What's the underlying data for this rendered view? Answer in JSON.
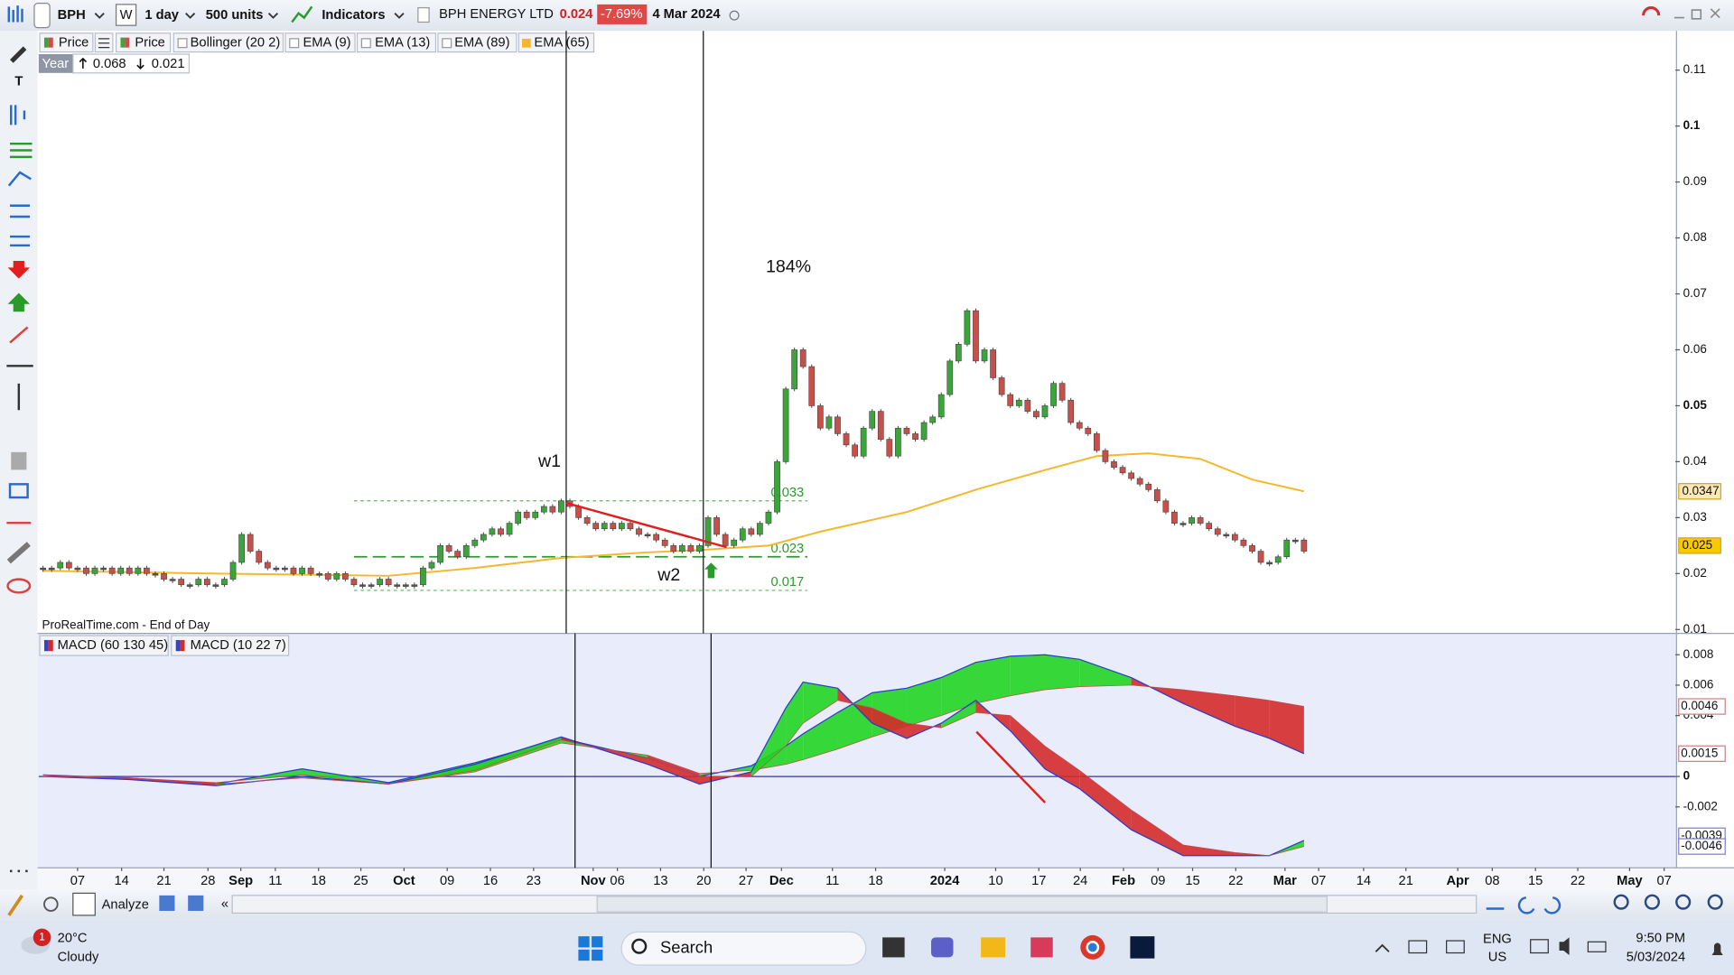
{
  "toolbar": {
    "symbol": "BPH",
    "w": "W",
    "period": "1 day",
    "units": "500 units",
    "indicators": "Indicators",
    "instrument": "BPH ENERGY LTD",
    "price": "0.024",
    "change": "-7.69%",
    "date": "4 Mar 2024"
  },
  "price_legend": {
    "items": [
      "Price",
      "Price",
      "Bollinger (20 2)",
      "EMA (9)",
      "EMA (13)",
      "EMA (89)",
      "EMA (65)"
    ],
    "period": "Year",
    "high": "0.068",
    "low": "0.021"
  },
  "source": "ProRealTime.com - End of Day",
  "chart_data": [
    {
      "type": "candlestick",
      "values": [
        0.021,
        0.021,
        0.022,
        0.021,
        0.021,
        0.02,
        0.021,
        0.021,
        0.02,
        0.021,
        0.02,
        0.021,
        0.02,
        0.02,
        0.019,
        0.019,
        0.018,
        0.018,
        0.019,
        0.018,
        0.018,
        0.019,
        0.022,
        0.027,
        0.024,
        0.022,
        0.021,
        0.021,
        0.021,
        0.02,
        0.021,
        0.02,
        0.02,
        0.019,
        0.02,
        0.019,
        0.018,
        0.018,
        0.018,
        0.019,
        0.018,
        0.018,
        0.018,
        0.018,
        0.021,
        0.022,
        0.025,
        0.024,
        0.023,
        0.025,
        0.026,
        0.027,
        0.028,
        0.027,
        0.029,
        0.031,
        0.03,
        0.031,
        0.032,
        0.031,
        0.033,
        0.032,
        0.03,
        0.029,
        0.028,
        0.029,
        0.028,
        0.029,
        0.028,
        0.027,
        0.027,
        0.026,
        0.025,
        0.024,
        0.025,
        0.024,
        0.025,
        0.03,
        0.027,
        0.025,
        0.026,
        0.028,
        0.027,
        0.029,
        0.031,
        0.04,
        0.053,
        0.06,
        0.057,
        0.05,
        0.046,
        0.048,
        0.045,
        0.043,
        0.041,
        0.046,
        0.049,
        0.044,
        0.041,
        0.046,
        0.045,
        0.044,
        0.047,
        0.048,
        0.052,
        0.058,
        0.061,
        0.067,
        0.058,
        0.06,
        0.055,
        0.052,
        0.05,
        0.051,
        0.049,
        0.048,
        0.05,
        0.054,
        0.051,
        0.047,
        0.046,
        0.045,
        0.042,
        0.04,
        0.039,
        0.038,
        0.037,
        0.036,
        0.035,
        0.033,
        0.031,
        0.029,
        0.029,
        0.03,
        0.029,
        0.028,
        0.027,
        0.027,
        0.026,
        0.025,
        0.024,
        0.022,
        0.022,
        0.023,
        0.026,
        0.026,
        0.024
      ],
      "up_color": "#3aa63a",
      "down_color": "#c9504a",
      "ema": {
        "color": "#f5b72c",
        "x": [
          0,
          20,
          40,
          50,
          60,
          70,
          76,
          84,
          90,
          100,
          108,
          116,
          122,
          128,
          134,
          140,
          146
        ],
        "values": [
          0.0205,
          0.02,
          0.0196,
          0.021,
          0.0228,
          0.0238,
          0.0242,
          0.025,
          0.0275,
          0.031,
          0.035,
          0.0385,
          0.041,
          0.0415,
          0.0405,
          0.0368,
          0.0347
        ]
      },
      "levels": [
        0.033,
        0.023,
        0.017
      ],
      "annotations": [
        "184%",
        "w1",
        "w2"
      ],
      "xlim": [
        -0.5,
        189
      ],
      "xticks": [
        {
          "value": 4,
          "label": "07"
        },
        {
          "value": 9.1,
          "label": "14"
        },
        {
          "value": 14,
          "label": "21"
        },
        {
          "value": 19.1,
          "label": "28"
        },
        {
          "value": 22.9,
          "label": "Sep"
        },
        {
          "value": 26.9,
          "label": "11"
        },
        {
          "value": 31.9,
          "label": "18"
        },
        {
          "value": 36.8,
          "label": "25"
        },
        {
          "value": 41.8,
          "label": "Oct"
        },
        {
          "value": 46.8,
          "label": "09"
        },
        {
          "value": 51.8,
          "label": "16"
        },
        {
          "value": 56.8,
          "label": "23"
        },
        {
          "value": 63.7,
          "label": "Nov"
        },
        {
          "value": 66.5,
          "label": "06"
        },
        {
          "value": 71.5,
          "label": "13"
        },
        {
          "value": 76.5,
          "label": "20"
        },
        {
          "value": 81.4,
          "label": "27"
        },
        {
          "value": 85.5,
          "label": "Dec"
        },
        {
          "value": 91.4,
          "label": "11"
        },
        {
          "value": 96.4,
          "label": "18"
        },
        {
          "value": 104.4,
          "label": "2024"
        },
        {
          "value": 110.3,
          "label": "10"
        },
        {
          "value": 115.3,
          "label": "17"
        },
        {
          "value": 120.1,
          "label": "24"
        },
        {
          "value": 125.1,
          "label": "Feb"
        },
        {
          "value": 129.1,
          "label": "09"
        },
        {
          "value": 133.1,
          "label": "15"
        },
        {
          "value": 138.1,
          "label": "22"
        },
        {
          "value": 143.8,
          "label": "Mar"
        },
        {
          "value": 147.7,
          "label": "07"
        },
        {
          "value": 152.9,
          "label": "14"
        },
        {
          "value": 157.8,
          "label": "21"
        },
        {
          "value": 163.8,
          "label": "Apr"
        },
        {
          "value": 167.8,
          "label": "08"
        },
        {
          "value": 172.8,
          "label": "15"
        },
        {
          "value": 177.7,
          "label": "22"
        },
        {
          "value": 183.7,
          "label": "May"
        },
        {
          "value": 187.7,
          "label": "07"
        }
      ],
      "ylim": [
        0.0095,
        0.117
      ],
      "yticks": [
        0.11,
        0.1,
        0.09,
        0.08,
        0.07,
        0.06,
        0.05,
        0.04,
        0.03,
        0.02,
        0.01
      ],
      "markers": [
        {
          "value": 0.0347,
          "color": "#fde9b8"
        },
        {
          "value": 0.025,
          "color": "#f8c800"
        }
      ]
    },
    {
      "type": "macd-ribbon",
      "up_color": "#22d422",
      "down_color": "#d42a2a",
      "series": [
        {
          "name": "MACD (60 130 45)",
          "x": [
            0,
            10,
            20,
            30,
            40,
            50,
            60,
            70,
            76,
            82,
            86,
            88,
            92,
            96,
            100,
            104,
            108,
            112,
            116,
            120,
            126,
            132,
            138,
            142,
            146
          ],
          "values": [
            0.0001,
            -0.0001,
            -0.0005,
            0.0005,
            -0.0004,
            0.0009,
            0.0025,
            0.0012,
            0.0,
            0.0007,
            0.002,
            0.0028,
            0.0042,
            0.0055,
            0.0058,
            0.0065,
            0.0075,
            0.0079,
            0.008,
            0.0077,
            0.0065,
            0.0048,
            0.0033,
            0.0025,
            0.0015
          ],
          "signal": [
            0.0001,
            -0.0001,
            -0.0004,
            0.0001,
            -0.0005,
            0.0003,
            0.0022,
            0.0014,
            0.0002,
            0.0004,
            0.0008,
            0.0011,
            0.0018,
            0.0026,
            0.0033,
            0.004,
            0.0048,
            0.0053,
            0.0057,
            0.0059,
            0.006,
            0.0057,
            0.0053,
            0.005,
            0.0046
          ]
        },
        {
          "name": "MACD (10 22 7)",
          "x": [
            0,
            10,
            20,
            30,
            40,
            50,
            60,
            70,
            76,
            82,
            86,
            88,
            92,
            96,
            100,
            104,
            108,
            112,
            116,
            120,
            126,
            132,
            138,
            142,
            146
          ],
          "values": [
            0.0,
            -0.0002,
            -0.0006,
            0.0,
            -0.0005,
            0.0008,
            0.0026,
            0.0008,
            -0.0005,
            0.0003,
            0.0045,
            0.0062,
            0.0058,
            0.0035,
            0.0025,
            0.0035,
            0.005,
            0.003,
            0.0005,
            -0.0008,
            -0.0035,
            -0.0052,
            -0.0052,
            -0.0052,
            -0.0042
          ],
          "signal": [
            0.0,
            -0.0001,
            -0.0005,
            -0.0001,
            -0.0005,
            0.0004,
            0.0024,
            0.0012,
            0.0,
            0.0,
            0.002,
            0.0035,
            0.005,
            0.0045,
            0.0035,
            0.0032,
            0.0042,
            0.004,
            0.002,
            0.0004,
            -0.0022,
            -0.0045,
            -0.005,
            -0.0052,
            -0.0046
          ]
        }
      ],
      "ylim": [
        -0.006,
        0.0094
      ],
      "yticks": [
        0.008,
        0.006,
        0.004,
        0,
        -0.002
      ],
      "markers": [
        0.0046,
        0.0015,
        -0.0039,
        -0.0046
      ]
    }
  ],
  "bottom_bar": {
    "analyze": "Analyze"
  },
  "taskbar": {
    "temperature": "20°C",
    "weather": "Cloudy",
    "badge": "1",
    "search": "Search",
    "language": "ENG",
    "region": "US",
    "time": "9:50 PM",
    "date": "5/03/2024"
  }
}
